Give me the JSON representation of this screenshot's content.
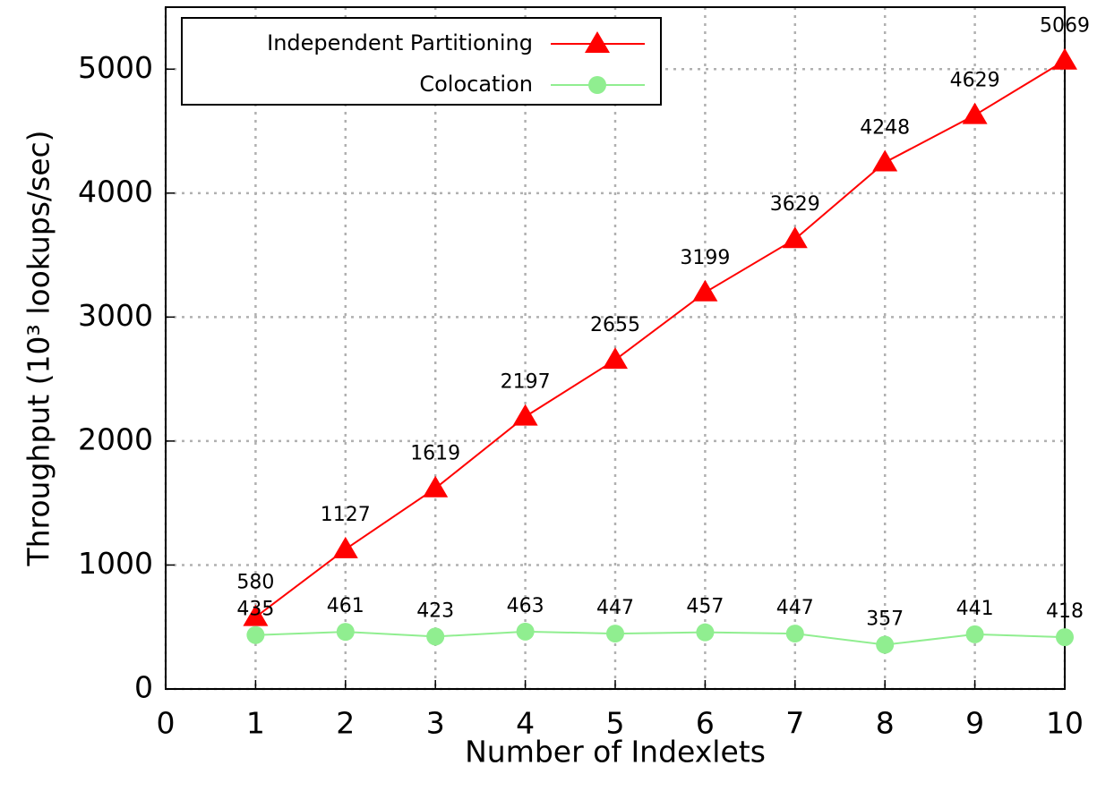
{
  "chart_data": {
    "type": "line",
    "xlabel": "Number of Indexlets",
    "ylabel": "Throughput (10³  lookups/sec)",
    "x": [
      1,
      2,
      3,
      4,
      5,
      6,
      7,
      8,
      9,
      10
    ],
    "series": [
      {
        "name": "Independent Partitioning",
        "color": "#ff0000",
        "marker": "triangle",
        "values": [
          580,
          1127,
          1619,
          2197,
          2655,
          3199,
          3629,
          4248,
          4629,
          5069
        ]
      },
      {
        "name": "Colocation",
        "color": "#90ee90",
        "marker": "circle",
        "values": [
          435,
          461,
          423,
          463,
          447,
          457,
          447,
          357,
          441,
          418
        ]
      }
    ],
    "xlim": [
      0,
      10
    ],
    "xticks": [
      0,
      1,
      2,
      3,
      4,
      5,
      6,
      7,
      8,
      9,
      10
    ],
    "ylim": [
      0,
      5500
    ],
    "yticks": [
      0,
      1000,
      2000,
      3000,
      4000,
      5000
    ],
    "grid": true,
    "legend": "upper left"
  }
}
